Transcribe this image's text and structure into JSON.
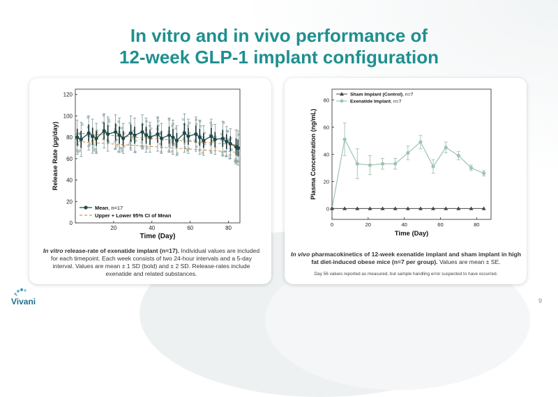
{
  "slide": {
    "title_line1": "In vitro and in vivo performance of",
    "title_line2": "12-week GLP-1 implant configuration",
    "page_number": "9",
    "logo_text": "Vivani",
    "accent_color": "#1f8f8f"
  },
  "left_caption": {
    "bold_italic": "In vitro",
    "bold": " release-rate of exenatide implant (n=17).",
    "rest": " Individual values are included for each timepoint. Each week consists of two 24-hour intervals and a 5-day interval. Values are mean ± 1 SD (bold) and ± 2 SD. Release-rates include exenatide and related substances."
  },
  "right_caption": {
    "bold_italic": "In vivo",
    "bold": " pharmacokinetics of 12-week exenatide implant and sham implant in high fat diet-induced obese mice (n=7 per group).",
    "rest": " Values are mean ± SE.",
    "note": "Day 56 values reported as measured, but sample handling error suspected to have occurred."
  },
  "chart_data": [
    {
      "type": "line",
      "xlabel": "Time (Day)",
      "ylabel": "Release Rate (μg/day)",
      "xlim": [
        0,
        86
      ],
      "ylim": [
        0,
        125
      ],
      "x_ticks": [
        20,
        40,
        60,
        80
      ],
      "y_ticks": [
        0,
        20,
        40,
        60,
        80,
        100,
        120
      ],
      "legend_position": "bottom-left",
      "series": [
        {
          "name": "Mean",
          "name_suffix": ", n=17",
          "color": "#1e4a4a",
          "x": [
            1,
            3,
            7,
            9,
            11,
            15,
            17,
            21,
            23,
            25,
            29,
            31,
            35,
            37,
            39,
            43,
            45,
            49,
            51,
            53,
            57,
            59,
            63,
            65,
            67,
            71,
            73,
            77,
            79,
            81,
            84,
            85
          ],
          "values": [
            80,
            78,
            84,
            81,
            79,
            86,
            83,
            85,
            82,
            79,
            84,
            82,
            85,
            82,
            80,
            83,
            79,
            82,
            80,
            77,
            84,
            81,
            83,
            80,
            77,
            81,
            78,
            79,
            76,
            74,
            71,
            70
          ],
          "sd1": [
            8,
            8,
            8,
            8,
            7,
            8,
            8,
            8,
            8,
            7,
            8,
            8,
            8,
            8,
            7,
            8,
            7,
            8,
            8,
            7,
            9,
            8,
            8,
            8,
            7,
            8,
            7,
            8,
            7,
            7,
            8,
            8
          ],
          "sd2": [
            16,
            16,
            16,
            16,
            14,
            16,
            16,
            16,
            16,
            14,
            16,
            16,
            16,
            16,
            14,
            16,
            14,
            16,
            16,
            14,
            18,
            16,
            16,
            16,
            14,
            16,
            14,
            16,
            14,
            14,
            16,
            16
          ]
        },
        {
          "name": "Upper + Lower 95% CI of Mean",
          "color": "#c87a2a",
          "style": "dashed",
          "x": [
            1,
            85
          ],
          "upper": [
            84,
            73
          ],
          "lower": [
            76,
            66
          ]
        }
      ]
    },
    {
      "type": "line",
      "xlabel": "Time (Day)",
      "ylabel": "Plasma Concentration (ng/mL)",
      "xlim": [
        0,
        88
      ],
      "ylim": [
        -8,
        88
      ],
      "x_ticks": [
        0,
        20,
        40,
        60,
        80
      ],
      "y_ticks": [
        0,
        20,
        40,
        60,
        80
      ],
      "legend_position": "top-left",
      "series": [
        {
          "name": "Sham Implant (Control)",
          "name_suffix": ", n=7",
          "color": "#444444",
          "marker": "triangle",
          "x": [
            0,
            7,
            14,
            21,
            28,
            35,
            42,
            49,
            56,
            63,
            70,
            77,
            84
          ],
          "values": [
            0,
            0,
            0,
            0,
            0,
            0,
            0,
            0,
            0,
            0,
            0,
            0,
            0
          ],
          "se": [
            0,
            0,
            0,
            0,
            0,
            0,
            0,
            0,
            0,
            0,
            0,
            0,
            0
          ]
        },
        {
          "name": "Exenatide Implant",
          "name_suffix": ", n=7",
          "color": "#9ec4b0",
          "marker": "circle",
          "x": [
            0,
            7,
            14,
            21,
            28,
            35,
            42,
            49,
            56,
            63,
            70,
            77,
            84
          ],
          "values": [
            0,
            51,
            33,
            32,
            33,
            33,
            41,
            49,
            31,
            45,
            39,
            30,
            26
          ],
          "se": [
            0,
            12,
            11,
            7,
            4,
            4,
            5,
            5,
            5,
            4,
            3,
            2,
            2
          ]
        }
      ]
    }
  ]
}
